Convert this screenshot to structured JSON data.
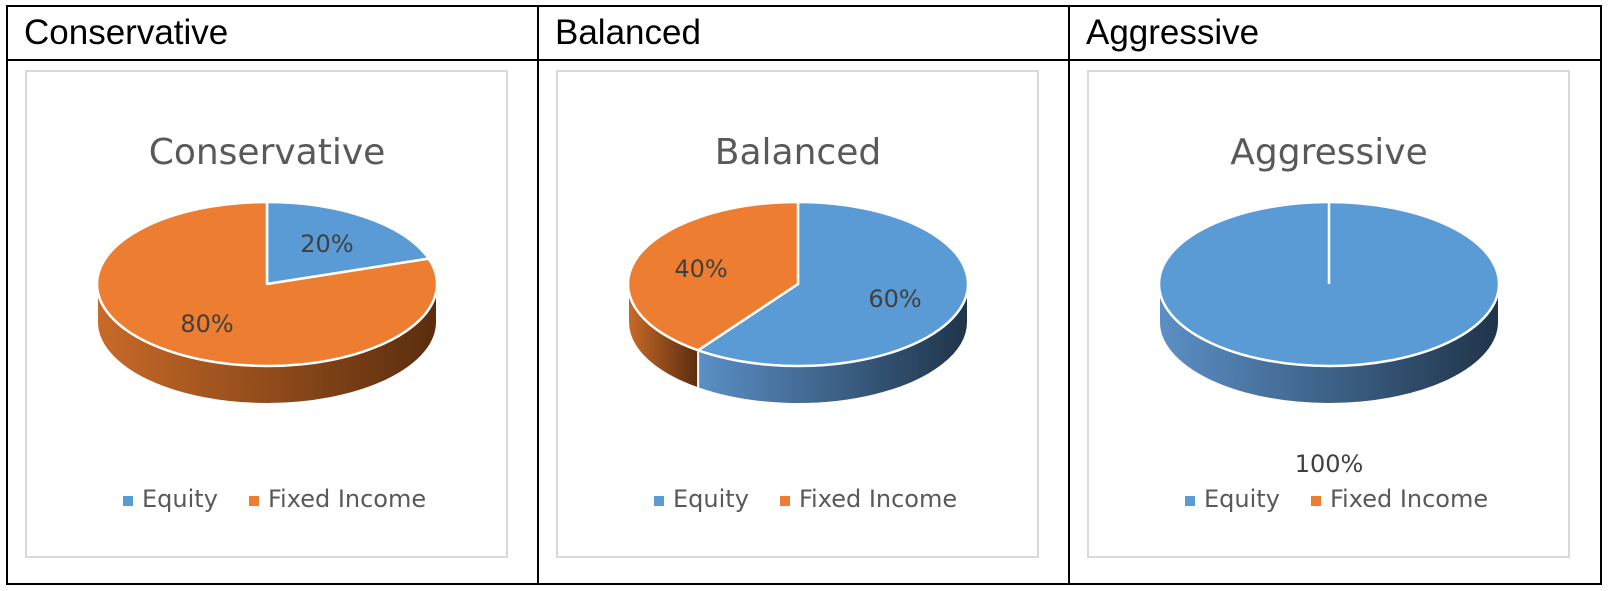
{
  "table": {
    "headers": [
      "Conservative",
      "Balanced",
      "Aggressive"
    ]
  },
  "colors": {
    "equity": "#5B9BD5",
    "fixed_income": "#ED7D31",
    "equity_side_light": "#5B8FC6",
    "equity_side_dark": "#1F3449",
    "fixed_side_light": "#C86A28",
    "fixed_side_dark": "#5A2D0E"
  },
  "chart_data": [
    {
      "type": "pie",
      "title": "Conservative",
      "categories": [
        "Equity",
        "Fixed Income"
      ],
      "values": [
        20,
        80
      ],
      "data_labels": [
        "20%",
        "80%"
      ],
      "legend": [
        "Equity",
        "Fixed Income"
      ],
      "legend_position": "bottom"
    },
    {
      "type": "pie",
      "title": "Balanced",
      "categories": [
        "Equity",
        "Fixed Income"
      ],
      "values": [
        60,
        40
      ],
      "data_labels": [
        "60%",
        "40%"
      ],
      "legend": [
        "Equity",
        "Fixed Income"
      ],
      "legend_position": "bottom"
    },
    {
      "type": "pie",
      "title": "Aggressive",
      "categories": [
        "Equity",
        "Fixed Income"
      ],
      "values": [
        100,
        0
      ],
      "data_labels": [
        "100%",
        ""
      ],
      "legend": [
        "Equity",
        "Fixed Income"
      ],
      "legend_position": "bottom"
    }
  ]
}
